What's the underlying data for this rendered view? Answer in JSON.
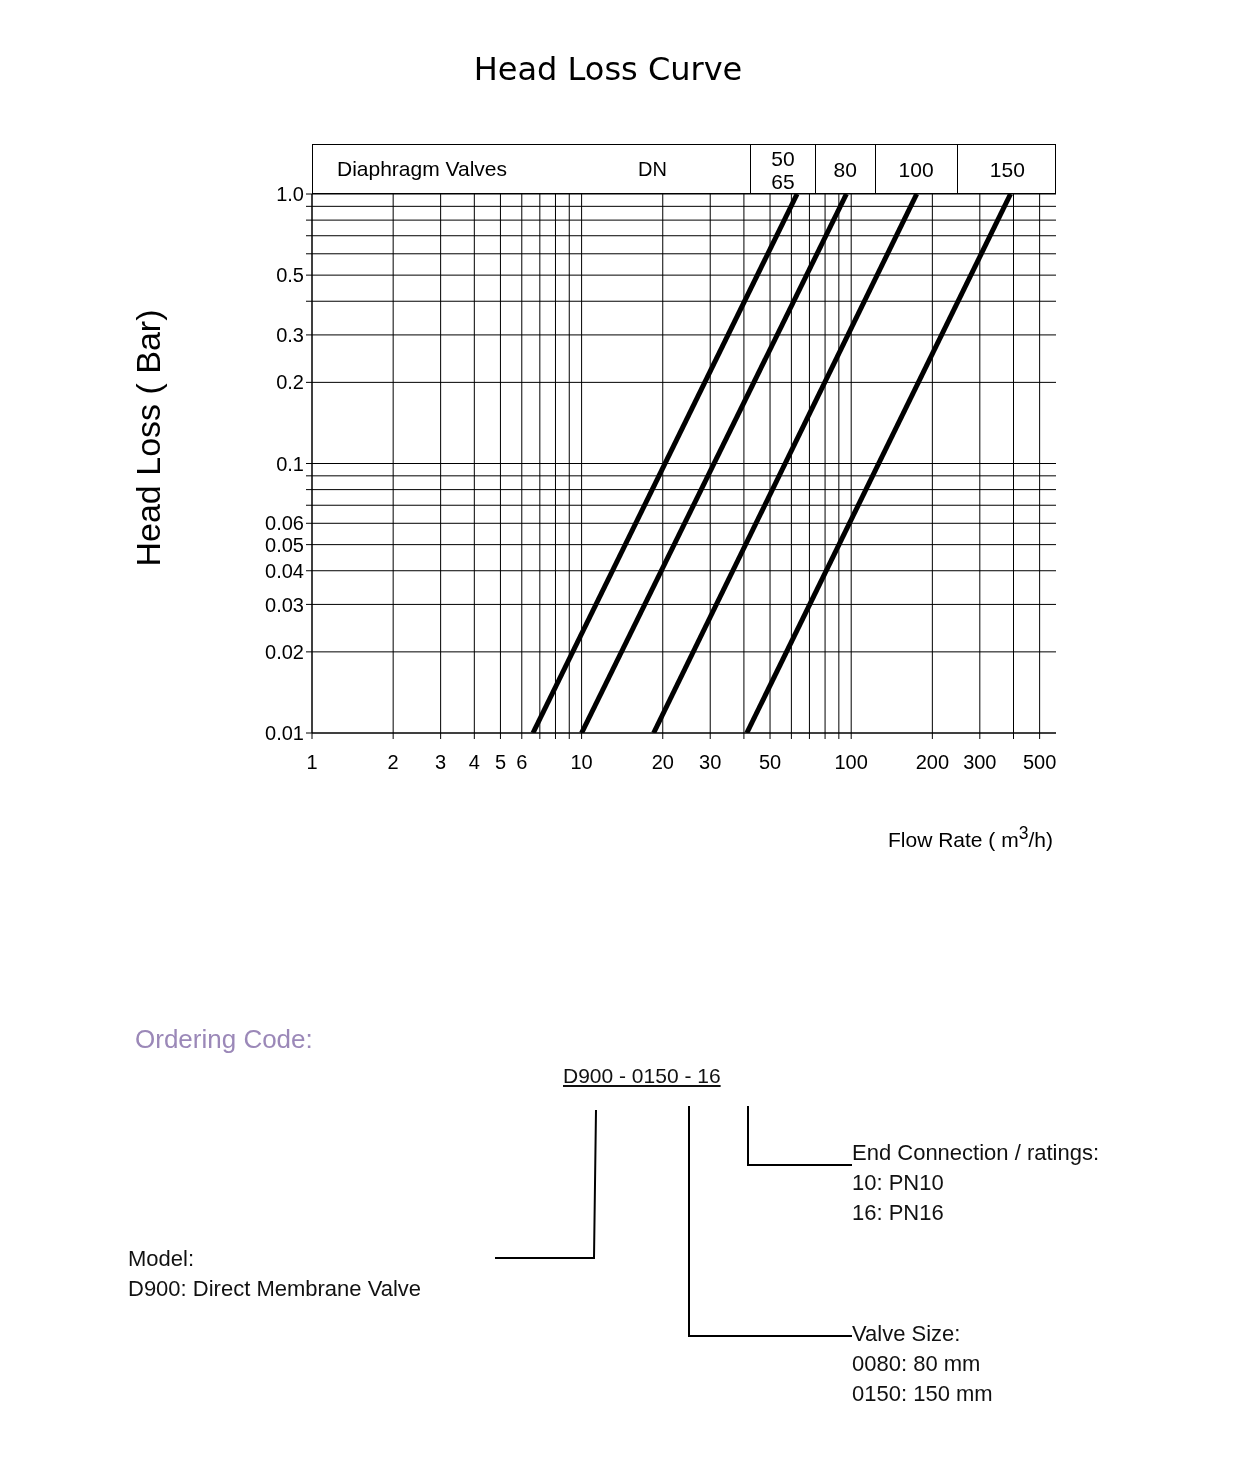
{
  "chart_data": {
    "type": "line",
    "title": "Head Loss Curve",
    "xlabel": "Flow Rate  ( m$^{3}$/h)",
    "ylabel": "Head Loss ( Bar)",
    "legend_title": "Diaphragm Valves",
    "log": "xy",
    "grid": true,
    "legend": "top",
    "marker": "none",
    "line_style": "solid",
    "xlim": [
      1,
      575
    ],
    "ylim": [
      0.01,
      1
    ],
    "xticks": [
      1,
      2,
      3,
      4,
      5,
      6,
      {
        "value": 7,
        "label": null
      },
      {
        "value": 8,
        "label": null
      },
      {
        "value": 9,
        "label": null
      },
      10,
      20,
      30,
      {
        "value": 40,
        "label": null
      },
      50,
      {
        "value": 60,
        "label": null
      },
      {
        "value": 70,
        "label": null
      },
      {
        "value": 80,
        "label": null
      },
      {
        "value": 90,
        "label": null
      },
      100,
      200,
      300,
      {
        "value": 400,
        "label": null
      },
      500
    ],
    "yticks": [
      0.01,
      0.02,
      0.03,
      0.04,
      0.05,
      0.06,
      {
        "value": 0.07,
        "label": null
      },
      {
        "value": 0.08,
        "label": null
      },
      {
        "value": 0.09,
        "label": null
      },
      0.1,
      0.2,
      0.3,
      {
        "value": 0.4,
        "label": null
      },
      0.5,
      {
        "value": 0.6,
        "label": null
      },
      {
        "value": 0.7,
        "label": null
      },
      {
        "value": 0.8,
        "label": null
      },
      {
        "value": 0.9,
        "label": null
      },
      {
        "value": 1,
        "label": "1.0"
      }
    ],
    "series": [
      {
        "name": "50 65",
        "color": "#000000",
        "x": [
          6.6,
          63
        ],
        "values": [
          0.01,
          1
        ]
      },
      {
        "name": "80",
        "color": "#000000",
        "x": [
          10,
          96
        ],
        "values": [
          0.01,
          1
        ]
      },
      {
        "name": "100",
        "color": "#000000",
        "x": [
          18.5,
          175
        ],
        "values": [
          0.01,
          1
        ]
      },
      {
        "name": "150",
        "color": "#000000",
        "x": [
          41,
          390
        ],
        "values": [
          0.01,
          1
        ]
      }
    ],
    "annotations": [
      "DN",
      "Ordering Code:",
      "D900 - 0150 - 16",
      "Model:",
      "D900: Direct Membrane Valve",
      "Valve Size:",
      "0080: 80 mm",
      "0150: 150 mm",
      "End Connection / ratings:",
      "10: PN10",
      "16: PN16"
    ]
  }
}
